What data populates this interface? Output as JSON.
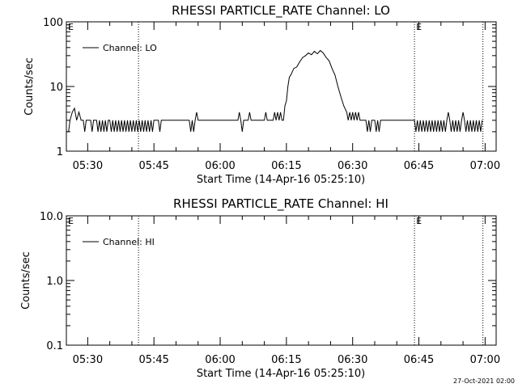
{
  "stamp": "27-Oct-2021 02:00",
  "colors": {
    "background": "#ffffff",
    "foreground": "#000000"
  },
  "chart_data": [
    {
      "type": "line",
      "title": "RHESSI PARTICLE_RATE Channel: LO",
      "xlabel": "Start Time (14-Apr-16 05:25:10)",
      "ylabel": "Counts/sec",
      "yscale": "log",
      "ylim": [
        1,
        100
      ],
      "yticks": [
        {
          "v": 1,
          "label": "1"
        },
        {
          "v": 10,
          "label": "10"
        },
        {
          "v": 100,
          "label": "100"
        }
      ],
      "xlim": [
        "05:25:10",
        "07:02:30"
      ],
      "xticks": [
        "05:30",
        "05:45",
        "06:00",
        "06:15",
        "06:30",
        "06:45",
        "07:00"
      ],
      "grid": false,
      "legend": {
        "position": "top-left",
        "entries": [
          "Channel: LO"
        ]
      },
      "vlines": [
        {
          "x": "05:41:30",
          "label": ""
        },
        {
          "x": "06:44:00",
          "label": "E"
        },
        {
          "x": "06:59:30",
          "label": ""
        }
      ],
      "corner_mark": "E",
      "series": [
        {
          "name": "Channel: LO",
          "points": [
            [
              "05:25:10",
              2.0
            ],
            [
              "05:25:40",
              2.0
            ],
            [
              "05:26:00",
              3.0
            ],
            [
              "05:26:30",
              4.0
            ],
            [
              "05:27:00",
              4.6
            ],
            [
              "05:27:30",
              3.0
            ],
            [
              "05:28:00",
              4.0
            ],
            [
              "05:28:30",
              3.0
            ],
            [
              "05:29:00",
              3.0
            ],
            [
              "05:29:20",
              2.0
            ],
            [
              "05:29:40",
              3.0
            ],
            [
              "05:30:00",
              3.0
            ],
            [
              "05:30:40",
              3.0
            ],
            [
              "05:31:00",
              2.0
            ],
            [
              "05:31:20",
              3.0
            ],
            [
              "05:32:00",
              3.0
            ],
            [
              "05:32:20",
              2.0
            ],
            [
              "05:32:40",
              3.0
            ],
            [
              "05:33:00",
              2.0
            ],
            [
              "05:33:20",
              3.0
            ],
            [
              "05:33:40",
              2.0
            ],
            [
              "05:34:00",
              3.0
            ],
            [
              "05:34:20",
              2.0
            ],
            [
              "05:34:40",
              3.0
            ],
            [
              "05:35:00",
              3.0
            ],
            [
              "05:35:20",
              2.0
            ],
            [
              "05:35:40",
              3.0
            ],
            [
              "05:36:00",
              2.0
            ],
            [
              "05:36:20",
              3.0
            ],
            [
              "05:36:40",
              2.0
            ],
            [
              "05:37:00",
              3.0
            ],
            [
              "05:37:20",
              2.0
            ],
            [
              "05:37:40",
              3.0
            ],
            [
              "05:38:00",
              2.0
            ],
            [
              "05:38:20",
              3.0
            ],
            [
              "05:38:40",
              2.0
            ],
            [
              "05:39:00",
              3.0
            ],
            [
              "05:39:20",
              2.0
            ],
            [
              "05:39:40",
              3.0
            ],
            [
              "05:40:00",
              2.0
            ],
            [
              "05:40:20",
              3.0
            ],
            [
              "05:40:40",
              2.0
            ],
            [
              "05:41:00",
              3.0
            ],
            [
              "05:41:20",
              2.0
            ],
            [
              "05:41:40",
              3.0
            ],
            [
              "05:42:00",
              2.0
            ],
            [
              "05:42:20",
              3.0
            ],
            [
              "05:42:40",
              2.0
            ],
            [
              "05:43:00",
              3.0
            ],
            [
              "05:43:20",
              2.0
            ],
            [
              "05:43:40",
              3.0
            ],
            [
              "05:44:00",
              2.0
            ],
            [
              "05:44:20",
              3.0
            ],
            [
              "05:44:40",
              2.0
            ],
            [
              "05:45:00",
              3.0
            ],
            [
              "05:46:00",
              3.0
            ],
            [
              "05:46:20",
              2.0
            ],
            [
              "05:46:40",
              3.0
            ],
            [
              "05:53:00",
              3.0
            ],
            [
              "05:53:20",
              2.0
            ],
            [
              "05:53:40",
              3.0
            ],
            [
              "05:54:00",
              2.0
            ],
            [
              "05:54:20",
              3.0
            ],
            [
              "05:54:40",
              4.0
            ],
            [
              "05:55:00",
              3.0
            ],
            [
              "06:04:00",
              3.0
            ],
            [
              "06:04:20",
              4.0
            ],
            [
              "06:04:40",
              3.0
            ],
            [
              "06:05:00",
              2.0
            ],
            [
              "06:05:20",
              3.0
            ],
            [
              "06:06:20",
              3.0
            ],
            [
              "06:06:40",
              4.0
            ],
            [
              "06:07:00",
              3.0
            ],
            [
              "06:10:00",
              3.0
            ],
            [
              "06:10:20",
              4.0
            ],
            [
              "06:10:40",
              3.0
            ],
            [
              "06:12:00",
              3.0
            ],
            [
              "06:12:20",
              4.0
            ],
            [
              "06:12:40",
              3.0
            ],
            [
              "06:13:00",
              4.0
            ],
            [
              "06:13:20",
              3.0
            ],
            [
              "06:13:40",
              4.0
            ],
            [
              "06:14:00",
              3.0
            ],
            [
              "06:14:20",
              3.0
            ],
            [
              "06:14:40",
              5.0
            ],
            [
              "06:15:00",
              6.0
            ],
            [
              "06:15:20",
              10.0
            ],
            [
              "06:15:40",
              14.0
            ],
            [
              "06:16:00",
              15.0
            ],
            [
              "06:16:40",
              19.0
            ],
            [
              "06:17:20",
              20.0
            ],
            [
              "06:18:00",
              24.0
            ],
            [
              "06:18:40",
              28.0
            ],
            [
              "06:19:20",
              30.0
            ],
            [
              "06:20:00",
              33.0
            ],
            [
              "06:20:40",
              31.0
            ],
            [
              "06:21:20",
              35.0
            ],
            [
              "06:22:00",
              32.0
            ],
            [
              "06:22:40",
              36.0
            ],
            [
              "06:23:20",
              33.0
            ],
            [
              "06:24:00",
              28.0
            ],
            [
              "06:24:40",
              25.0
            ],
            [
              "06:25:20",
              19.0
            ],
            [
              "06:26:00",
              15.0
            ],
            [
              "06:26:40",
              10.0
            ],
            [
              "06:27:20",
              7.0
            ],
            [
              "06:28:00",
              5.0
            ],
            [
              "06:28:40",
              4.0
            ],
            [
              "06:29:00",
              3.0
            ],
            [
              "06:29:20",
              4.0
            ],
            [
              "06:29:40",
              3.0
            ],
            [
              "06:30:00",
              4.0
            ],
            [
              "06:30:20",
              3.0
            ],
            [
              "06:30:40",
              4.0
            ],
            [
              "06:31:00",
              3.0
            ],
            [
              "06:31:20",
              4.0
            ],
            [
              "06:31:40",
              3.0
            ],
            [
              "06:32:00",
              3.0
            ],
            [
              "06:33:00",
              3.0
            ],
            [
              "06:33:20",
              2.0
            ],
            [
              "06:33:40",
              3.0
            ],
            [
              "06:34:00",
              2.0
            ],
            [
              "06:34:20",
              3.0
            ],
            [
              "06:35:00",
              3.0
            ],
            [
              "06:35:20",
              2.0
            ],
            [
              "06:35:40",
              3.0
            ],
            [
              "06:36:00",
              2.0
            ],
            [
              "06:36:20",
              3.0
            ],
            [
              "06:44:00",
              3.0
            ],
            [
              "06:44:20",
              2.0
            ],
            [
              "06:44:40",
              3.0
            ],
            [
              "06:45:00",
              2.0
            ],
            [
              "06:45:20",
              3.0
            ],
            [
              "06:45:40",
              2.0
            ],
            [
              "06:46:00",
              3.0
            ],
            [
              "06:46:20",
              2.0
            ],
            [
              "06:46:40",
              3.0
            ],
            [
              "06:47:00",
              2.0
            ],
            [
              "06:47:20",
              3.0
            ],
            [
              "06:47:40",
              2.0
            ],
            [
              "06:48:00",
              3.0
            ],
            [
              "06:48:20",
              2.0
            ],
            [
              "06:48:40",
              3.0
            ],
            [
              "06:49:00",
              2.0
            ],
            [
              "06:49:20",
              3.0
            ],
            [
              "06:49:40",
              2.0
            ],
            [
              "06:50:00",
              3.0
            ],
            [
              "06:50:20",
              2.0
            ],
            [
              "06:50:40",
              3.0
            ],
            [
              "06:51:00",
              2.0
            ],
            [
              "06:51:20",
              3.0
            ],
            [
              "06:51:40",
              4.0
            ],
            [
              "06:52:00",
              3.0
            ],
            [
              "06:52:20",
              2.0
            ],
            [
              "06:52:40",
              3.0
            ],
            [
              "06:53:00",
              2.0
            ],
            [
              "06:53:20",
              3.0
            ],
            [
              "06:53:40",
              2.0
            ],
            [
              "06:54:00",
              3.0
            ],
            [
              "06:54:20",
              2.0
            ],
            [
              "06:54:40",
              3.0
            ],
            [
              "06:55:00",
              4.0
            ],
            [
              "06:55:20",
              3.0
            ],
            [
              "06:55:40",
              2.0
            ],
            [
              "06:56:00",
              3.0
            ],
            [
              "06:56:20",
              2.0
            ],
            [
              "06:56:40",
              3.0
            ],
            [
              "06:57:00",
              2.0
            ],
            [
              "06:57:20",
              3.0
            ],
            [
              "06:57:40",
              2.0
            ],
            [
              "06:58:00",
              3.0
            ],
            [
              "06:58:20",
              2.0
            ],
            [
              "06:58:40",
              3.0
            ],
            [
              "06:59:00",
              2.0
            ],
            [
              "06:59:20",
              3.0
            ]
          ]
        }
      ]
    },
    {
      "type": "line",
      "title": "RHESSI PARTICLE_RATE Channel: HI",
      "xlabel": "Start Time (14-Apr-16 05:25:10)",
      "ylabel": "Counts/sec",
      "yscale": "log",
      "ylim": [
        0.1,
        10
      ],
      "yticks": [
        {
          "v": 0.1,
          "label": "0.1"
        },
        {
          "v": 1,
          "label": "1.0"
        },
        {
          "v": 10,
          "label": "10.0"
        }
      ],
      "xlim": [
        "05:25:10",
        "07:02:30"
      ],
      "xticks": [
        "05:30",
        "05:45",
        "06:00",
        "06:15",
        "06:30",
        "06:45",
        "07:00"
      ],
      "grid": false,
      "legend": {
        "position": "top-left",
        "entries": [
          "Channel: HI"
        ]
      },
      "vlines": [
        {
          "x": "05:41:30",
          "label": ""
        },
        {
          "x": "06:44:00",
          "label": "E"
        },
        {
          "x": "06:59:30",
          "label": ""
        }
      ],
      "corner_mark": "E",
      "series": [
        {
          "name": "Channel: HI",
          "points": []
        }
      ]
    }
  ]
}
